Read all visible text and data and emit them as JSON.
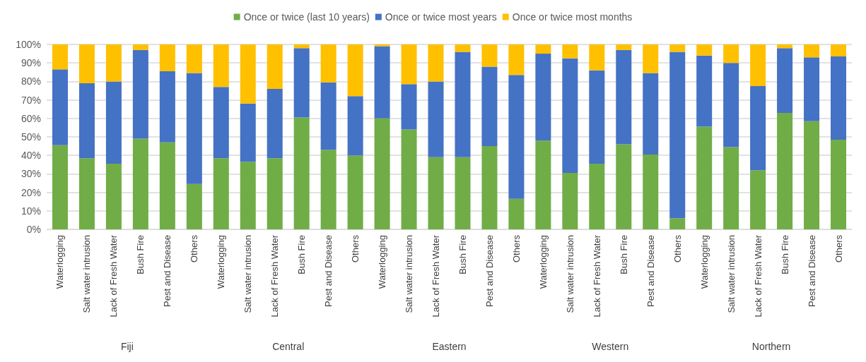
{
  "chart_data": {
    "type": "bar",
    "stacked": true,
    "categories": [
      "Waterlogging",
      "Salt water intrusion",
      "Lack of Fresh Water",
      "Bush Fire",
      "Pest and Disease",
      "Others",
      "Waterlogging",
      "Salt water intrusion",
      "Lack of Fresh Water",
      "Bush Fire",
      "Pest and Disease",
      "Others",
      "Waterlogging",
      "Salt water intrusion",
      "Lack of Fresh Water",
      "Bush Fire",
      "Pest and Disease",
      "Others",
      "Waterlogging",
      "Salt water intrusion",
      "Lack of Fresh Water",
      "Bush Fire",
      "Pest and Disease",
      "Others",
      "Waterlogging",
      "Salt water intrusion",
      "Lack of Fresh Water",
      "Bush Fire",
      "Pest and Disease",
      "Others"
    ],
    "series": [
      {
        "name": "Once or twice (last 10 years)",
        "color": "#70ad47",
        "values": [
          45.5,
          38.5,
          35.5,
          49,
          47,
          24.5,
          38.5,
          36.5,
          38.5,
          60.5,
          43,
          40,
          60,
          54,
          39,
          39,
          45,
          16.5,
          48,
          30.5,
          35.5,
          46,
          40.5,
          6,
          55.5,
          44.5,
          32,
          63,
          58.5,
          48.5
        ]
      },
      {
        "name": "Once or twice most years",
        "color": "#4472c4",
        "values": [
          41,
          40.5,
          44.5,
          48,
          38.5,
          60,
          38.5,
          31.5,
          37.5,
          37.5,
          36.5,
          32,
          39,
          24.5,
          41,
          57,
          43,
          67,
          47,
          62,
          50.5,
          51,
          44,
          90,
          38.5,
          45.5,
          45.5,
          35,
          34.5,
          45
        ]
      },
      {
        "name": "Once or twice most months",
        "color": "#ffc000",
        "values": [
          13.5,
          21,
          20,
          3,
          14.5,
          15.5,
          23,
          32,
          24,
          2,
          20.5,
          28,
          1,
          21.5,
          20,
          4,
          12,
          16.5,
          5,
          7.5,
          14,
          3,
          15.5,
          4,
          6,
          10,
          22.5,
          2,
          7,
          6.5
        ]
      }
    ],
    "ylim": [
      0,
      100
    ],
    "yticks": [
      {
        "value": 0,
        "label": "0%"
      },
      {
        "value": 10,
        "label": "10%"
      },
      {
        "value": 20,
        "label": "20%"
      },
      {
        "value": 30,
        "label": "30%"
      },
      {
        "value": 40,
        "label": "40%"
      },
      {
        "value": 50,
        "label": "50%"
      },
      {
        "value": 60,
        "label": "60%"
      },
      {
        "value": 70,
        "label": "70%"
      },
      {
        "value": 80,
        "label": "80%"
      },
      {
        "value": 90,
        "label": "90%"
      },
      {
        "value": 100,
        "label": "100%"
      }
    ],
    "grid": "y",
    "legend": "top",
    "annotations": [
      "Fiji",
      "Central",
      "Eastern",
      "Western",
      "Northern"
    ]
  }
}
